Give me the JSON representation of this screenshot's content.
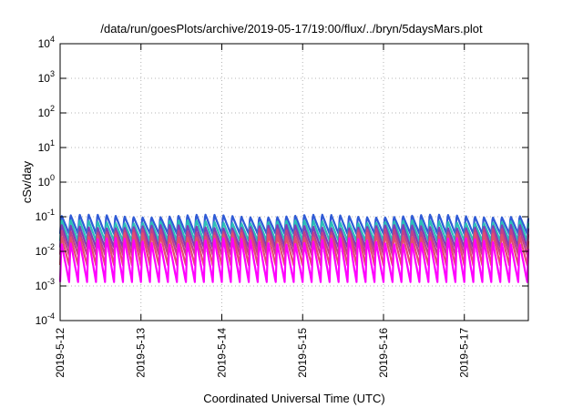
{
  "chart_data": {
    "type": "line",
    "title": "/data/run/goesPlots/archive/2019-05-17/19:00/flux/../bryn/5daysMars.plot",
    "xlabel": "Coordinated Universal Time (UTC)",
    "ylabel": "cSv/day",
    "yscale": "log",
    "ylim": [
      0.0001,
      10000
    ],
    "y_ticks": [
      {
        "base": "10",
        "exp": "-4",
        "value": 0.0001
      },
      {
        "base": "10",
        "exp": "-3",
        "value": 0.001
      },
      {
        "base": "10",
        "exp": "-2",
        "value": 0.01
      },
      {
        "base": "10",
        "exp": "-1",
        "value": 0.1
      },
      {
        "base": "10",
        "exp": "0",
        "value": 1
      },
      {
        "base": "10",
        "exp": "1",
        "value": 10
      },
      {
        "base": "10",
        "exp": "2",
        "value": 100
      },
      {
        "base": "10",
        "exp": "3",
        "value": 1000
      },
      {
        "base": "10",
        "exp": "4",
        "value": 10000
      }
    ],
    "x_range": [
      "2019-05-12 00:00",
      "2019-05-17 19:00"
    ],
    "x_ticks": [
      "2019-5-12",
      "2019-5-13",
      "2019-5-14",
      "2019-5-15",
      "2019-5-16",
      "2019-5-17"
    ],
    "grid": true,
    "legend": "none",
    "series_colors": [
      "#2f5bd6",
      "#2bbfb8",
      "#7d3db8",
      "#c0408a",
      "#e34d6e",
      "#ff00ff"
    ],
    "series": [
      {
        "low": 0.032,
        "high": 0.11,
        "cycles_per_day": 9,
        "start": "2019-05-12 00:00",
        "end": "2019-05-17 19:00"
      },
      {
        "low": 0.02,
        "high": 0.075,
        "cycles_per_day": 9,
        "start": "2019-05-12 00:00",
        "end": "2019-05-17 19:00"
      },
      {
        "low": 0.013,
        "high": 0.055,
        "cycles_per_day": 9,
        "start": "2019-05-12 00:00",
        "end": "2019-05-17 19:00"
      },
      {
        "low": 0.008,
        "high": 0.042,
        "cycles_per_day": 9,
        "start": "2019-05-12 00:00",
        "end": "2019-05-17 19:00"
      },
      {
        "low": 0.004,
        "high": 0.032,
        "cycles_per_day": 9,
        "start": "2019-05-12 00:00",
        "end": "2019-05-17 19:00"
      },
      {
        "low": 0.0013,
        "high": 0.022,
        "cycles_per_day": 9,
        "start": "2019-05-12 00:00",
        "end": "2019-05-17 19:00"
      }
    ]
  }
}
